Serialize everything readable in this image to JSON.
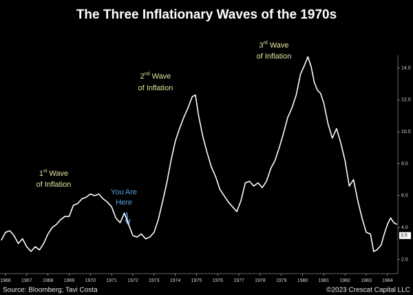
{
  "chart_data": {
    "type": "line",
    "title": "The Three Inflationary Waves of the 1970s",
    "source": "Source: Bloomberg; Tavi Costa",
    "copyright": "©2023 Crescat Capital LLC",
    "annotations": {
      "first_wave": {
        "number": "1",
        "suffix": "st",
        "word": "Wave",
        "line2": "of Inflation"
      },
      "second_wave": {
        "number": "2",
        "suffix": "nd",
        "word": "Wave",
        "line2": "of Inflation"
      },
      "third_wave": {
        "number": "3",
        "suffix": "rd",
        "word": "Wave",
        "line2": "of Inflation"
      },
      "you_are_here": {
        "line1": "You Are",
        "line2": "Here"
      }
    },
    "end_label": {
      "value": 3.5,
      "label": "3.5"
    },
    "color": "#ffffff",
    "xlim": [
      1965.74,
      1984.49
    ],
    "xticks": [
      1966,
      1967,
      1968,
      1969,
      1970,
      1971,
      1972,
      1973,
      1974,
      1975,
      1976,
      1977,
      1978,
      1979,
      1980,
      1981,
      1982,
      1983,
      1984
    ],
    "ylim": [
      1.2,
      14.8
    ],
    "yticks": [
      {
        "value": 2,
        "label": "2.0"
      },
      {
        "value": 4,
        "label": "4.0"
      },
      {
        "value": 6,
        "label": "6.0"
      },
      {
        "value": 8,
        "label": "8.0"
      },
      {
        "value": 10,
        "label": "10.0"
      },
      {
        "value": 12,
        "label": "12.0"
      },
      {
        "value": 14,
        "label": "14.0"
      }
    ],
    "x": [
      1965.8,
      1966.0,
      1966.2,
      1966.4,
      1966.6,
      1966.8,
      1967.0,
      1967.2,
      1967.4,
      1967.6,
      1967.8,
      1968.0,
      1968.2,
      1968.4,
      1968.6,
      1968.8,
      1969.0,
      1969.2,
      1969.4,
      1969.6,
      1969.8,
      1970.0,
      1970.2,
      1970.4,
      1970.6,
      1970.8,
      1971.0,
      1971.2,
      1971.4,
      1971.6,
      1971.8,
      1972.0,
      1972.2,
      1972.4,
      1972.6,
      1972.8,
      1973.0,
      1973.2,
      1973.4,
      1973.6,
      1973.8,
      1974.0,
      1974.2,
      1974.4,
      1974.6,
      1974.8,
      1974.95,
      1975.1,
      1975.3,
      1975.5,
      1975.7,
      1975.9,
      1976.1,
      1976.3,
      1976.5,
      1976.7,
      1976.9,
      1977.1,
      1977.3,
      1977.5,
      1977.7,
      1977.9,
      1978.1,
      1978.3,
      1978.5,
      1978.7,
      1978.9,
      1979.1,
      1979.3,
      1979.5,
      1979.7,
      1979.9,
      1980.1,
      1980.25,
      1980.4,
      1980.55,
      1980.7,
      1980.85,
      1981.0,
      1981.2,
      1981.4,
      1981.6,
      1981.8,
      1982.0,
      1982.2,
      1982.4,
      1982.6,
      1982.8,
      1983.0,
      1983.2,
      1983.35,
      1983.5,
      1983.7,
      1983.85,
      1984.0,
      1984.15,
      1984.3,
      1984.45
    ],
    "values": [
      3.2,
      3.7,
      3.8,
      3.5,
      3.0,
      3.3,
      2.8,
      2.5,
      2.8,
      2.6,
      3.0,
      3.6,
      4.0,
      4.2,
      4.5,
      4.7,
      4.7,
      5.4,
      5.5,
      5.8,
      5.9,
      6.1,
      6.0,
      6.1,
      5.8,
      5.6,
      5.3,
      4.6,
      4.3,
      4.9,
      4.2,
      3.5,
      3.4,
      3.6,
      3.3,
      3.4,
      3.7,
      4.5,
      5.6,
      6.8,
      8.2,
      9.4,
      10.2,
      10.9,
      11.5,
      12.2,
      12.3,
      11.0,
      9.7,
      8.7,
      7.8,
      7.2,
      6.4,
      6.0,
      5.6,
      5.3,
      5.0,
      5.7,
      6.8,
      6.9,
      6.6,
      6.8,
      6.5,
      6.9,
      7.7,
      8.2,
      9.0,
      9.9,
      10.9,
      11.5,
      12.3,
      13.6,
      14.2,
      14.7,
      14.1,
      13.1,
      12.6,
      12.4,
      11.8,
      10.5,
      9.6,
      10.2,
      9.3,
      8.2,
      6.6,
      7.0,
      5.7,
      4.6,
      3.7,
      3.6,
      2.5,
      2.6,
      2.9,
      3.6,
      4.2,
      4.6,
      4.3,
      4.2
    ]
  }
}
